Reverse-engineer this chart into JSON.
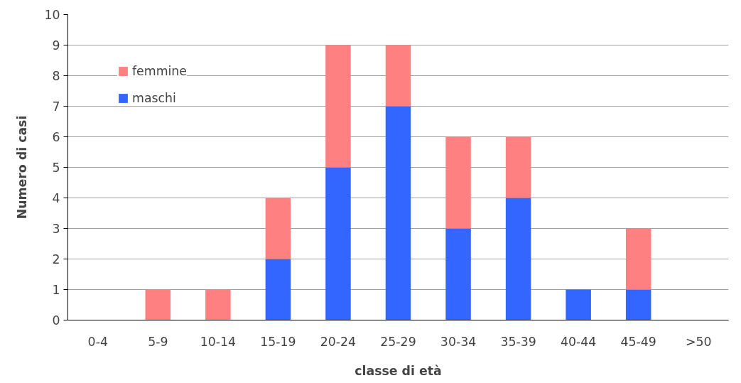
{
  "chart_data": {
    "type": "bar",
    "stacked": true,
    "xlabel": "classe di età",
    "ylabel": "Numero di casi",
    "categories": [
      "0-4",
      "5-9",
      "10-14",
      "15-19",
      "20-24",
      "25-29",
      "30-34",
      "35-39",
      "40-44",
      "45-49",
      ">50"
    ],
    "series": [
      {
        "name": "maschi",
        "color": "#3366ff",
        "values": [
          0,
          0,
          0,
          2,
          5,
          7,
          3,
          4,
          1,
          1,
          0
        ]
      },
      {
        "name": "femmine",
        "color": "#ff8080",
        "values": [
          0,
          1,
          1,
          2,
          4,
          2,
          3,
          2,
          0,
          2,
          0
        ]
      }
    ],
    "ylim": [
      0,
      10
    ],
    "yticks": [
      0,
      1,
      2,
      3,
      4,
      5,
      6,
      7,
      8,
      9,
      10
    ],
    "grid": "y",
    "legend": "top left"
  }
}
